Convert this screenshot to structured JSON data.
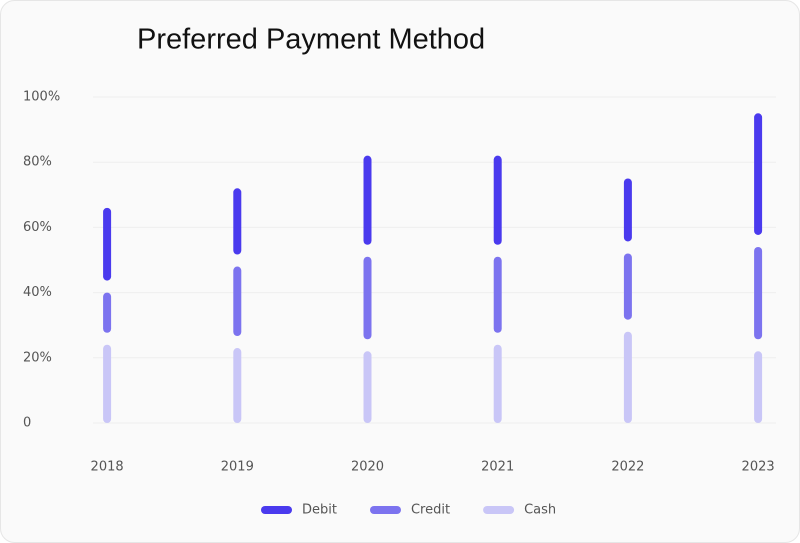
{
  "chart_data": {
    "type": "stacked-bar",
    "title": "Preferred Payment Method",
    "categories": [
      "2018",
      "2019",
      "2020",
      "2021",
      "2022",
      "2023"
    ],
    "series": [
      {
        "name": "Cash",
        "color": "#c9c6f7",
        "values": [
          24,
          23,
          22,
          24,
          28,
          22
        ]
      },
      {
        "name": "Credit",
        "color": "#7c73ef",
        "values": [
          16,
          25,
          29,
          27,
          24,
          32
        ]
      },
      {
        "name": "Debit",
        "color": "#4a3aee",
        "values": [
          26,
          24,
          31,
          31,
          23,
          41
        ]
      }
    ],
    "legend_order": [
      "Debit",
      "Credit",
      "Cash"
    ],
    "ylim": [
      0,
      100
    ],
    "yticks": [
      0,
      {
        "value": 20,
        "label": "20%"
      },
      {
        "value": 40,
        "label": "40%"
      },
      {
        "value": 60,
        "label": "60%"
      },
      {
        "value": 80,
        "label": "80%"
      },
      {
        "value": 100,
        "label": "100%"
      }
    ],
    "grid": true
  }
}
